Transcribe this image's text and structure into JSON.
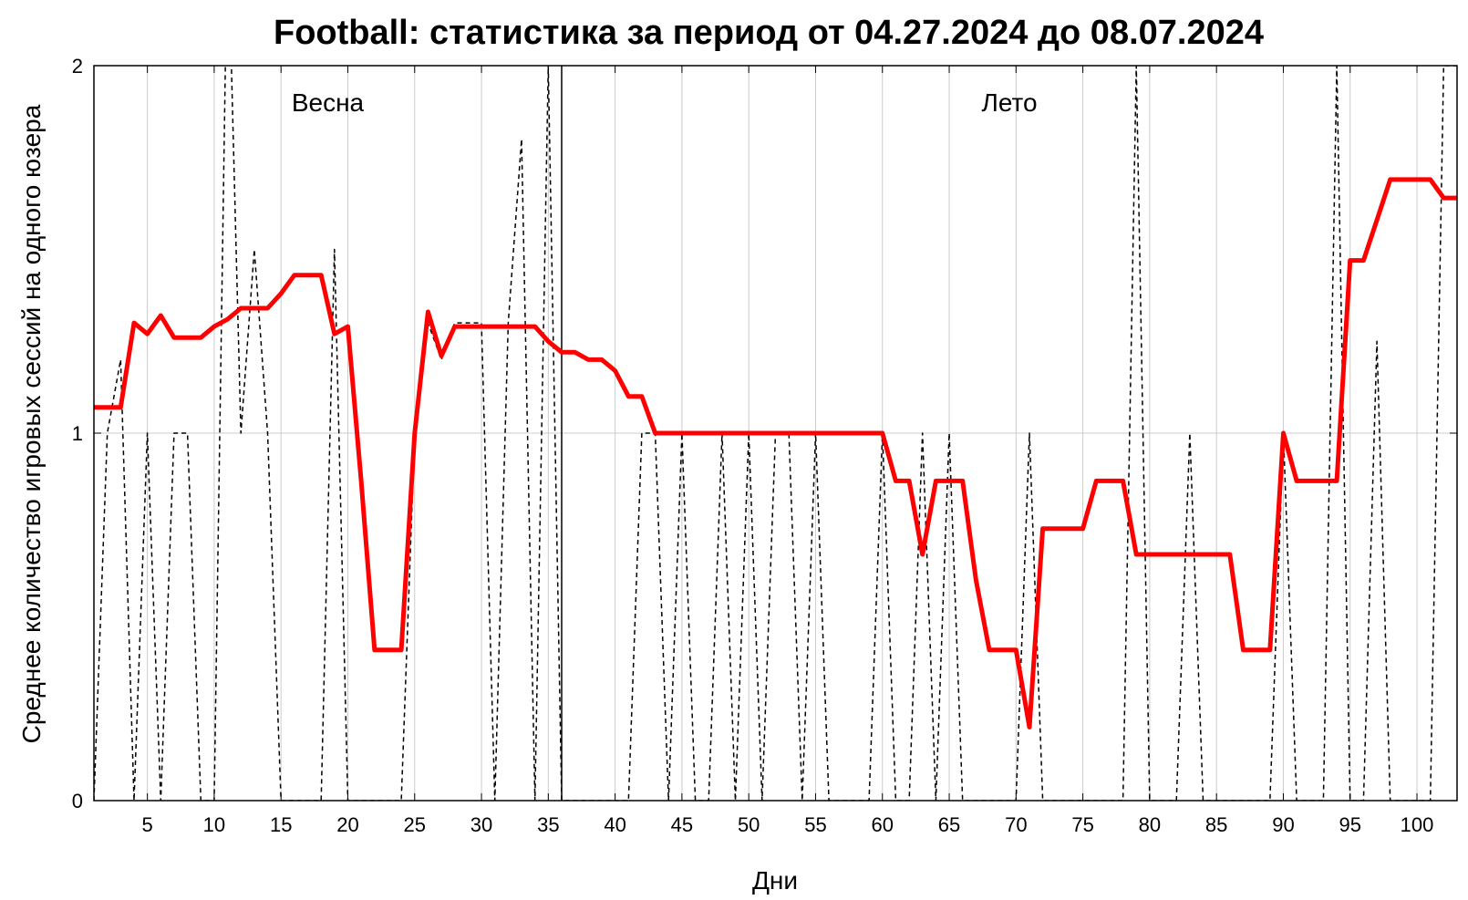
{
  "chart_data": {
    "type": "line",
    "title": "Football: статистика за период от 04.27.2024 до 08.07.2024",
    "xlabel": "Дни",
    "ylabel": "Среднее количество игровых сессий на одного юзера",
    "xlim": [
      1,
      103
    ],
    "ylim": [
      0,
      2
    ],
    "x_ticks": [
      5,
      10,
      15,
      20,
      25,
      30,
      35,
      40,
      45,
      50,
      55,
      60,
      65,
      70,
      75,
      80,
      85,
      90,
      95,
      100
    ],
    "y_ticks": [
      0,
      1,
      2
    ],
    "grid": true,
    "legend": "none",
    "seasons": [
      {
        "label": "Весна",
        "start": 1,
        "end": 36
      },
      {
        "label": "Лето",
        "start": 36,
        "end": 103
      }
    ],
    "series": [
      {
        "style": "dashed",
        "color": "#000000",
        "x": [
          1,
          2,
          3,
          4,
          5,
          6,
          7,
          8,
          9,
          10,
          11,
          12,
          13,
          14,
          15,
          16,
          17,
          18,
          19,
          20,
          21,
          22,
          23,
          24,
          25,
          26,
          27,
          28,
          29,
          30,
          31,
          32,
          33,
          34,
          35,
          36,
          37,
          38,
          39,
          40,
          41,
          42,
          43,
          44,
          45,
          46,
          47,
          48,
          49,
          50,
          51,
          52,
          53,
          54,
          55,
          56,
          57,
          58,
          59,
          60,
          61,
          62,
          63,
          64,
          65,
          66,
          67,
          68,
          69,
          70,
          71,
          72,
          73,
          74,
          75,
          76,
          77,
          78,
          79,
          80,
          81,
          82,
          83,
          84,
          85,
          86,
          87,
          88,
          89,
          90,
          91,
          92,
          93,
          94,
          95,
          96,
          97,
          98,
          99,
          100,
          101,
          102,
          103
        ],
        "y": [
          0,
          1,
          1.2,
          0,
          1,
          0,
          1,
          1,
          0,
          0,
          2.4,
          1,
          1.5,
          1,
          0,
          0,
          0,
          0,
          1.5,
          0,
          0,
          0,
          0,
          0,
          1,
          1.3,
          1.2,
          1.3,
          1.3,
          1.3,
          0,
          1.3,
          1.8,
          0,
          2,
          0,
          0,
          0,
          0,
          0,
          0,
          1,
          1,
          0,
          1,
          0,
          0,
          1,
          0,
          1,
          0,
          1,
          1,
          0,
          1,
          0,
          0,
          0,
          0,
          1,
          0,
          0,
          1,
          0,
          1,
          0,
          0,
          0,
          0,
          0,
          1,
          0,
          0,
          0,
          0,
          0,
          0,
          0,
          2,
          0,
          0,
          0,
          1,
          0,
          0,
          0,
          0,
          0,
          0,
          1,
          0,
          0,
          0,
          2,
          0,
          0,
          1.25,
          0,
          0,
          0,
          0,
          2,
          2
        ]
      },
      {
        "style": "solid",
        "color": "#ff0000",
        "x": [
          1,
          2,
          3,
          4,
          5,
          6,
          7,
          8,
          9,
          10,
          11,
          12,
          13,
          14,
          15,
          16,
          17,
          18,
          19,
          20,
          21,
          22,
          23,
          24,
          25,
          26,
          27,
          28,
          29,
          30,
          31,
          32,
          33,
          34,
          35,
          36,
          37,
          38,
          39,
          40,
          41,
          42,
          43,
          44,
          45,
          46,
          47,
          48,
          49,
          50,
          51,
          52,
          53,
          54,
          55,
          56,
          57,
          58,
          59,
          60,
          61,
          62,
          63,
          64,
          65,
          66,
          67,
          68,
          69,
          70,
          71,
          72,
          73,
          74,
          75,
          76,
          77,
          78,
          79,
          80,
          81,
          82,
          83,
          84,
          85,
          86,
          87,
          88,
          89,
          90,
          91,
          92,
          93,
          94,
          95,
          96,
          97,
          98,
          99,
          100,
          101,
          102,
          103
        ],
        "y": [
          1.07,
          1.07,
          1.07,
          1.3,
          1.27,
          1.32,
          1.26,
          1.26,
          1.26,
          1.29,
          1.31,
          1.34,
          1.34,
          1.34,
          1.38,
          1.43,
          1.43,
          1.43,
          1.27,
          1.29,
          0.87,
          0.41,
          0.41,
          0.41,
          1.0,
          1.33,
          1.21,
          1.29,
          1.29,
          1.29,
          1.29,
          1.29,
          1.29,
          1.29,
          1.25,
          1.22,
          1.22,
          1.2,
          1.2,
          1.17,
          1.1,
          1.1,
          1.0,
          1.0,
          1.0,
          1.0,
          1.0,
          1.0,
          1.0,
          1.0,
          1.0,
          1.0,
          1.0,
          1.0,
          1.0,
          1.0,
          1.0,
          1.0,
          1.0,
          1.0,
          0.87,
          0.87,
          0.67,
          0.87,
          0.87,
          0.87,
          0.6,
          0.41,
          0.41,
          0.41,
          0.2,
          0.74,
          0.74,
          0.74,
          0.74,
          0.87,
          0.87,
          0.87,
          0.67,
          0.67,
          0.67,
          0.67,
          0.67,
          0.67,
          0.67,
          0.67,
          0.41,
          0.41,
          0.41,
          1.0,
          0.87,
          0.87,
          0.87,
          0.87,
          1.47,
          1.47,
          1.58,
          1.69,
          1.69,
          1.69,
          1.69,
          1.64,
          1.64
        ]
      }
    ]
  }
}
